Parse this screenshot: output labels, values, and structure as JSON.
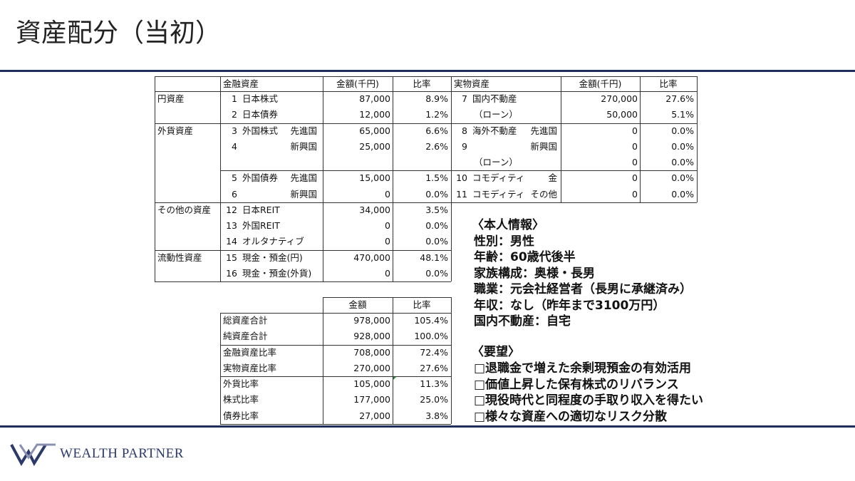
{
  "header": {
    "title": "資産配分（当初）"
  },
  "asset_table": {
    "headers": [
      "金融資産",
      "金額(千円)",
      "比率",
      "実物資産",
      "金額(千円)",
      "比率"
    ],
    "rows": [
      {
        "group": "円資産",
        "fin": {
          "no": "1",
          "name": "日本株式",
          "amount": "87,000",
          "ratio": "8.9%"
        },
        "real": {
          "no": "7",
          "name": "国内不動産",
          "amount": "270,000",
          "ratio": "27.6%"
        }
      },
      {
        "fin": {
          "no": "2",
          "name": "日本債券",
          "amount": "12,000",
          "ratio": "1.2%"
        },
        "real": {
          "name": "（ローン）",
          "amount": "50,000",
          "ratio": "5.1%"
        }
      },
      {
        "group": "外貨資産",
        "fin": {
          "no": "3",
          "name": "外国株式",
          "sub": "先進国",
          "amount": "65,000",
          "ratio": "6.6%"
        },
        "real": {
          "no": "8",
          "name": "海外不動産",
          "sub": "先進国",
          "amount": "0",
          "ratio": "0.0%"
        }
      },
      {
        "fin": {
          "no": "4",
          "sub": "新興国",
          "amount": "25,000",
          "ratio": "2.6%"
        },
        "real": {
          "no": "9",
          "sub": "新興国",
          "amount": "0",
          "ratio": "0.0%"
        }
      },
      {
        "real": {
          "name": "（ローン）",
          "amount": "0",
          "ratio": "0.0%"
        }
      },
      {
        "fin": {
          "no": "5",
          "name": "外国債券",
          "sub": "先進国",
          "amount": "15,000",
          "ratio": "1.5%"
        },
        "real": {
          "no": "10",
          "name": "コモディティ",
          "sub": "金",
          "amount": "0",
          "ratio": "0.0%"
        }
      },
      {
        "fin": {
          "no": "6",
          "sub": "新興国",
          "amount": "0",
          "ratio": "0.0%"
        },
        "real": {
          "no": "11",
          "name": "コモディティ",
          "sub": "その他",
          "amount": "0",
          "ratio": "0.0%"
        }
      },
      {
        "group": "その他の資産",
        "fin": {
          "no": "12",
          "name": "日本REIT",
          "amount": "34,000",
          "ratio": "3.5%"
        }
      },
      {
        "fin": {
          "no": "13",
          "name": "外国REIT",
          "amount": "0",
          "ratio": "0.0%"
        }
      },
      {
        "fin": {
          "no": "14",
          "name": "オルタナティブ",
          "amount": "0",
          "ratio": "0.0%"
        }
      },
      {
        "group": "流動性資産",
        "fin": {
          "no": "15",
          "name": "現金・預金(円)",
          "amount": "470,000",
          "ratio": "48.1%"
        }
      },
      {
        "fin": {
          "no": "16",
          "name": "現金・預金(外貨)",
          "amount": "0",
          "ratio": "0.0%"
        }
      }
    ]
  },
  "summary_table": {
    "headers": [
      "金額",
      "比率"
    ],
    "rows": [
      {
        "label": "総資産合計",
        "amount": "978,000",
        "ratio": "105.4%"
      },
      {
        "label": "純資産合計",
        "amount": "928,000",
        "ratio": "100.0%"
      },
      {
        "label": "金融資産比率",
        "amount": "708,000",
        "ratio": "72.4%"
      },
      {
        "label": "実物資産比率",
        "amount": "270,000",
        "ratio": "27.6%"
      },
      {
        "label": "外貨比率",
        "amount": "105,000",
        "ratio": "11.3%"
      },
      {
        "label": "株式比率",
        "amount": "177,000",
        "ratio": "25.0%"
      },
      {
        "label": "債券比率",
        "amount": "27,000",
        "ratio": "3.8%"
      }
    ]
  },
  "profile": {
    "heading": "〈本人情報〉",
    "items": [
      "性別：男性",
      "年齢：60歳代後半",
      "家族構成：奥様・長男",
      "職業：元会社経営者（長男に承継済み）",
      "年収：なし（昨年まで3100万円）",
      "国内不動産：自宅"
    ]
  },
  "requests": {
    "heading": "〈要望〉",
    "items": [
      "□退職金で増えた余剰現預金の有効活用",
      "□価値上昇した保有株式のリバランス",
      "□現役時代と同程度の手取り収入を得たい",
      "□様々な資産への適切なリスク分散"
    ]
  },
  "footer": {
    "brand": "WEALTH PARTNER"
  }
}
